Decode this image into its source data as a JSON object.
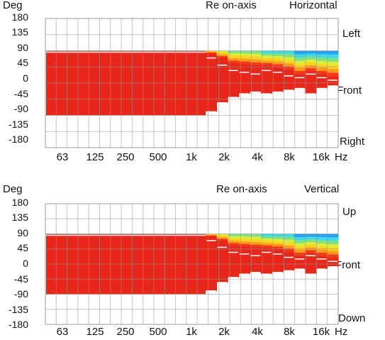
{
  "chart_data": [
    {
      "type": "heatmap",
      "ylabel": "Deg",
      "subtitle": "Re on-axis",
      "title": "Horizontal",
      "x_unit": "Hz",
      "x_ticks": [
        "63",
        "125",
        "250",
        "500",
        "1k",
        "2k",
        "4k",
        "8k",
        "16k"
      ],
      "y_ticks": [
        "180",
        "135",
        "90",
        "45",
        "0",
        "-45",
        "-90",
        "-135",
        "-180"
      ],
      "ylim": [
        -180,
        180
      ],
      "side_labels": {
        "top": "Left",
        "middle": "Front",
        "bottom": "Right"
      },
      "grid": true,
      "color_scale": [
        "#1f47d6",
        "#2aa0f0",
        "#3fd8e6",
        "#7fe08a",
        "#d8ee3a",
        "#ffd21f",
        "#ff9a1a",
        "#f23a1a",
        "#e8271a"
      ],
      "coverage_deg": [
        90,
        90,
        90,
        90,
        90,
        90,
        90,
        90,
        90,
        90,
        90,
        90,
        90,
        90,
        90,
        90,
        90,
        90,
        90,
        90,
        90,
        90,
        90,
        90,
        90,
        90,
        90,
        90,
        90,
        90,
        90,
        90,
        90,
        90,
        90,
        90,
        90,
        90,
        90,
        90,
        90,
        90,
        90,
        90,
        90,
        90,
        90,
        90,
        90,
        90,
        90,
        90,
        90,
        90,
        90,
        90,
        90,
        90,
        90,
        90,
        90,
        90,
        90,
        90,
        90,
        90,
        90,
        90,
        90,
        90,
        90,
        90,
        90,
        90,
        90,
        90,
        90,
        90,
        90,
        90,
        90,
        90,
        90,
        90,
        90,
        90,
        90,
        90,
        90,
        90,
        90,
        90,
        90,
        90,
        90,
        90,
        90,
        90,
        90,
        90,
        90,
        90,
        90,
        90,
        90,
        90,
        90,
        90,
        90,
        90,
        90,
        90,
        90,
        90,
        90,
        90,
        90,
        90,
        90,
        90,
        90,
        90,
        90,
        90,
        90,
        90,
        90,
        90,
        90,
        90,
        90,
        90,
        90,
        90,
        90,
        90,
        90,
        90,
        90,
        90,
        90,
        90,
        90,
        90,
        90,
        90,
        90,
        90,
        90,
        90,
        90,
        90,
        90,
        90,
        90,
        90,
        90,
        90,
        90,
        90,
        90,
        90,
        90,
        90,
        90,
        90,
        90,
        90,
        90,
        90,
        90,
        90,
        90,
        90,
        90,
        90,
        90,
        90,
        90,
        90,
        90,
        90,
        90,
        90,
        90,
        90,
        90,
        90,
        90,
        90,
        90,
        90,
        90,
        90,
        90,
        90,
        90,
        90,
        90,
        90,
        90,
        90,
        90,
        90,
        90,
        90,
        90,
        90,
        90,
        90,
        90,
        90,
        90,
        90,
        90,
        90,
        90,
        90,
        90,
        90,
        90,
        90,
        90,
        90,
        90,
        90,
        90,
        90,
        90,
        90,
        90,
        90,
        90,
        90,
        90,
        90,
        90,
        90,
        90,
        90,
        90,
        90,
        90,
        90,
        90,
        90,
        90,
        90,
        90,
        90,
        90,
        90,
        90,
        90,
        90,
        90,
        90,
        90,
        90,
        90
      ],
      "band_columns": [
        {
          "hz": "1.6k",
          "upper": 70,
          "lower": -80,
          "hi": 3
        },
        {
          "hz": "2k",
          "upper": 50,
          "lower": -55,
          "hi": 4
        },
        {
          "hz": "2.5k",
          "upper": 35,
          "lower": -40,
          "hi": 5
        },
        {
          "hz": "3.15k",
          "upper": 30,
          "lower": -30,
          "hi": 5
        },
        {
          "hz": "4k",
          "upper": 25,
          "lower": -25,
          "hi": 5
        },
        {
          "hz": "5k",
          "upper": 35,
          "lower": -30,
          "hi": 6
        },
        {
          "hz": "6.3k",
          "upper": 30,
          "lower": -25,
          "hi": 6
        },
        {
          "hz": "8k",
          "upper": 20,
          "lower": -20,
          "hi": 6
        },
        {
          "hz": "10k",
          "upper": 15,
          "lower": -15,
          "hi": 7
        },
        {
          "hz": "12.5k",
          "upper": 25,
          "lower": -30,
          "hi": 7
        },
        {
          "hz": "16k",
          "upper": 15,
          "lower": -15,
          "hi": 8
        },
        {
          "hz": "20k",
          "upper": 8,
          "lower": -8,
          "hi": 8
        }
      ]
    },
    {
      "type": "heatmap",
      "ylabel": "Deg",
      "subtitle": "Re on-axis",
      "title": "Vertical",
      "x_unit": "Hz",
      "x_ticks": [
        "63",
        "125",
        "250",
        "500",
        "1k",
        "2k",
        "4k",
        "8k",
        "16k"
      ],
      "y_ticks": [
        "180",
        "135",
        "90",
        "45",
        "0",
        "-45",
        "-90",
        "-135",
        "-180"
      ],
      "ylim": [
        -180,
        180
      ],
      "side_labels": {
        "top": "Up",
        "middle": "Front",
        "bottom": "Down"
      },
      "grid": true,
      "color_scale": [
        "#1f47d6",
        "#2aa0f0",
        "#3fd8e6",
        "#7fe08a",
        "#d8ee3a",
        "#ffd21f",
        "#ff9a1a",
        "#f23a1a",
        "#e8271a"
      ],
      "band_columns": [
        {
          "hz": "1.6k",
          "upper": 70,
          "lower": -80,
          "hi": 3
        },
        {
          "hz": "2k",
          "upper": 50,
          "lower": -55,
          "hi": 4
        },
        {
          "hz": "2.5k",
          "upper": 35,
          "lower": -40,
          "hi": 5
        },
        {
          "hz": "3.15k",
          "upper": 30,
          "lower": -30,
          "hi": 5
        },
        {
          "hz": "4k",
          "upper": 25,
          "lower": -25,
          "hi": 5
        },
        {
          "hz": "5k",
          "upper": 35,
          "lower": -30,
          "hi": 6
        },
        {
          "hz": "6.3k",
          "upper": 30,
          "lower": -25,
          "hi": 6
        },
        {
          "hz": "8k",
          "upper": 20,
          "lower": -20,
          "hi": 6
        },
        {
          "hz": "10k",
          "upper": 15,
          "lower": -15,
          "hi": 7
        },
        {
          "hz": "12.5k",
          "upper": 25,
          "lower": -30,
          "hi": 7
        },
        {
          "hz": "16k",
          "upper": 15,
          "lower": -15,
          "hi": 8
        },
        {
          "hz": "20k",
          "upper": 8,
          "lower": -8,
          "hi": 8
        }
      ]
    }
  ]
}
